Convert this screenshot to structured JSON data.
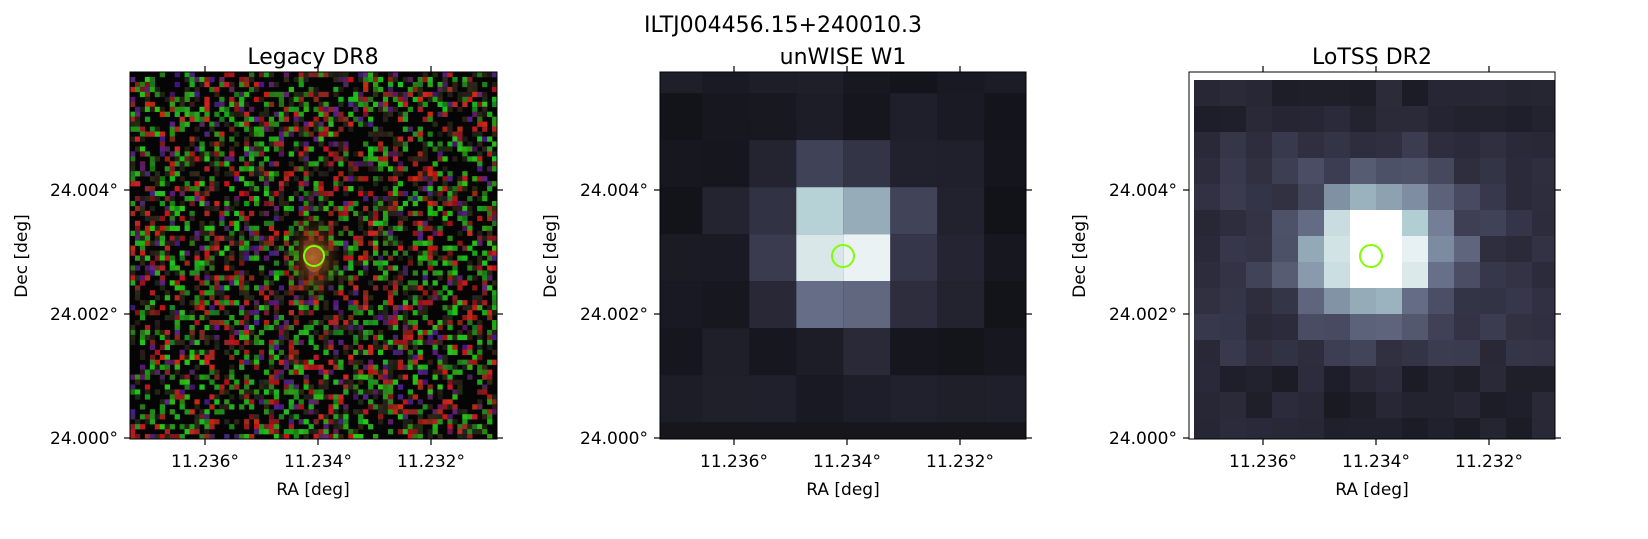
{
  "figure": {
    "title": "ILTJ004456.15+240010.3",
    "panels": [
      {
        "id": "legacy",
        "title": "Legacy DR8",
        "xlabel": "RA [deg]",
        "ylabel": "Dec [deg]",
        "xticks": [
          "11.236°",
          "11.234°",
          "11.232°"
        ],
        "yticks": [
          "24.004°",
          "24.002°",
          "24.000°"
        ]
      },
      {
        "id": "unwise",
        "title": "unWISE W1",
        "xlabel": "RA [deg]",
        "ylabel": "Dec [deg]",
        "xticks": [
          "11.236°",
          "11.234°",
          "11.232°"
        ],
        "yticks": [
          "24.004°",
          "24.002°",
          "24.000°"
        ]
      },
      {
        "id": "lotss",
        "title": "LoTSS DR2",
        "xlabel": "RA [deg]",
        "ylabel": "Dec [deg]",
        "xticks": [
          "11.236°",
          "11.234°",
          "11.232°"
        ],
        "yticks": [
          "24.004°",
          "24.002°",
          "24.000°"
        ]
      }
    ],
    "marker": {
      "shape": "circle",
      "color": "#7fff00",
      "ra": 11.234,
      "dec": 24.003
    }
  }
}
